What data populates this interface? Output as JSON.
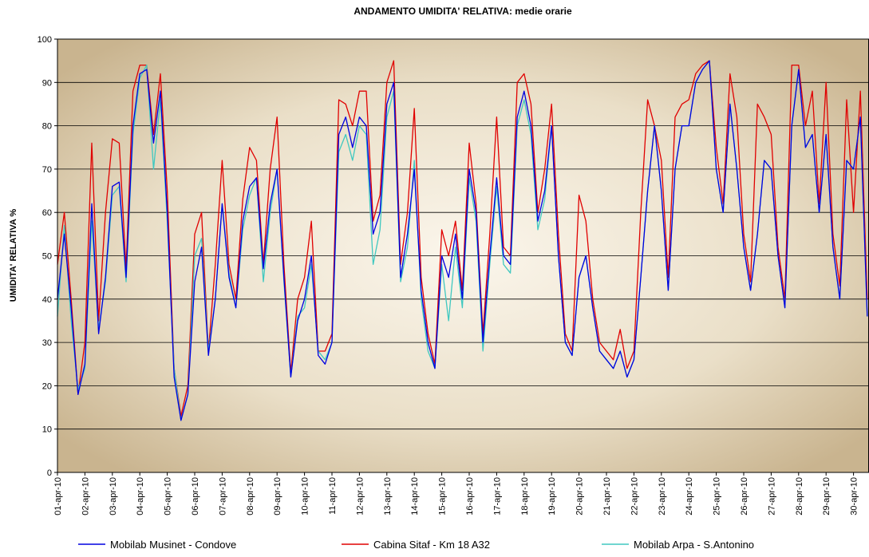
{
  "chart_data": {
    "type": "line",
    "title": "ANDAMENTO UMIDITA' RELATIVA: medie orarie",
    "y_label": "UMIDITA' RELATIVA %",
    "ylim": [
      0,
      100
    ],
    "yticks": [
      0,
      10,
      20,
      30,
      40,
      50,
      60,
      70,
      80,
      90,
      100
    ],
    "grid": true,
    "legend": "bottom",
    "categories": [
      "01-apr-10",
      null,
      null,
      null,
      "02-apr-10",
      null,
      null,
      null,
      "03-apr-10",
      null,
      null,
      null,
      "04-apr-10",
      null,
      null,
      null,
      "05-apr-10",
      null,
      null,
      null,
      "06-apr-10",
      null,
      null,
      null,
      "07-apr-10",
      null,
      null,
      null,
      "08-apr-10",
      null,
      null,
      null,
      "09-apr-10",
      null,
      null,
      null,
      "10-apr-10",
      null,
      null,
      null,
      "11-apr-10",
      null,
      null,
      null,
      "12-apr-10",
      null,
      null,
      null,
      "13-apr-10",
      null,
      null,
      null,
      "14-apr-10",
      null,
      null,
      null,
      "15-apr-10",
      null,
      null,
      null,
      "16-apr-10",
      null,
      null,
      null,
      "17-apr-10",
      null,
      null,
      null,
      "18-apr-10",
      null,
      null,
      null,
      "19-apr-10",
      null,
      null,
      null,
      "20-apr-10",
      null,
      null,
      null,
      "21-apr-10",
      null,
      null,
      null,
      "22-apr-10",
      null,
      null,
      null,
      "23-apr-10",
      null,
      null,
      null,
      "24-apr-10",
      null,
      null,
      null,
      "25-apr-10",
      null,
      null,
      null,
      "26-apr-10",
      null,
      null,
      null,
      "27-apr-10",
      null,
      null,
      null,
      "28-apr-10",
      null,
      null,
      null,
      "29-apr-10",
      null,
      null,
      null,
      "30-apr-10",
      null,
      null
    ],
    "series": [
      {
        "name": "Mobilab Musinet - Condove",
        "color": "#0000e0",
        "values": [
          40,
          55,
          38,
          18,
          25,
          62,
          32,
          45,
          66,
          67,
          45,
          80,
          92,
          93,
          76,
          88,
          60,
          22,
          12,
          18,
          44,
          52,
          27,
          40,
          62,
          45,
          38,
          58,
          66,
          68,
          47,
          62,
          70,
          45,
          22,
          35,
          40,
          50,
          27,
          25,
          30,
          78,
          82,
          75,
          82,
          80,
          55,
          60,
          85,
          90,
          45,
          55,
          70,
          42,
          30,
          24,
          50,
          45,
          55,
          40,
          70,
          60,
          30,
          50,
          68,
          50,
          48,
          82,
          88,
          80,
          58,
          65,
          80,
          50,
          30,
          27,
          45,
          50,
          38,
          28,
          26,
          24,
          28,
          22,
          26,
          45,
          65,
          80,
          65,
          42,
          70,
          80,
          80,
          90,
          93,
          95,
          70,
          60,
          85,
          70,
          52,
          42,
          55,
          72,
          70,
          50,
          38,
          80,
          93,
          75,
          78,
          60,
          78,
          52,
          40,
          72,
          70,
          82,
          36
        ]
      },
      {
        "name": "Cabina Sitaf - Km 18 A32",
        "color": "#e00000",
        "values": [
          48,
          60,
          40,
          18,
          30,
          76,
          35,
          60,
          77,
          76,
          47,
          88,
          94,
          94,
          78,
          92,
          65,
          24,
          13,
          20,
          55,
          60,
          28,
          48,
          72,
          48,
          40,
          63,
          75,
          72,
          48,
          70,
          82,
          48,
          23,
          40,
          45,
          58,
          28,
          28,
          32,
          86,
          85,
          80,
          88,
          88,
          58,
          64,
          90,
          95,
          48,
          60,
          84,
          45,
          32,
          25,
          56,
          50,
          58,
          42,
          76,
          62,
          32,
          55,
          82,
          52,
          50,
          90,
          92,
          85,
          60,
          70,
          85,
          55,
          32,
          28,
          64,
          58,
          40,
          30,
          28,
          26,
          33,
          24,
          28,
          60,
          86,
          80,
          72,
          45,
          82,
          85,
          86,
          92,
          94,
          95,
          75,
          62,
          92,
          82,
          55,
          44,
          85,
          82,
          78,
          52,
          40,
          94,
          94,
          80,
          88,
          62,
          90,
          55,
          43,
          86,
          60,
          88,
          40
        ]
      },
      {
        "name": "Mobilab Arpa - S.Antonino",
        "color": "#40c8c0",
        "values": [
          36,
          57,
          35,
          19,
          24,
          58,
          33,
          44,
          64,
          66,
          44,
          78,
          91,
          94,
          70,
          86,
          58,
          24,
          12,
          18,
          50,
          54,
          28,
          40,
          62,
          46,
          38,
          56,
          64,
          68,
          44,
          60,
          70,
          44,
          22,
          36,
          38,
          48,
          28,
          26,
          30,
          74,
          78,
          72,
          80,
          78,
          48,
          56,
          82,
          88,
          44,
          52,
          72,
          40,
          28,
          24,
          48,
          35,
          52,
          38,
          68,
          58,
          28,
          48,
          66,
          48,
          46,
          80,
          86,
          78,
          56,
          63,
          80,
          50,
          30,
          27,
          45,
          50,
          38,
          28,
          26,
          24,
          28,
          22,
          26,
          45,
          65,
          80,
          65,
          42,
          70,
          80,
          80,
          90,
          93,
          95,
          70,
          60,
          85,
          70,
          52,
          42,
          55,
          72,
          70,
          50,
          38,
          80,
          93,
          75,
          78,
          60,
          78,
          52,
          40,
          72,
          70,
          82,
          36
        ]
      }
    ]
  }
}
